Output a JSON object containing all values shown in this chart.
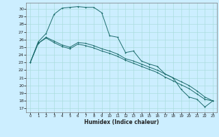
{
  "xlabel": "Humidex (Indice chaleur)",
  "bg_color": "#cceeff",
  "line_color": "#1a6b6b",
  "grid_color": "#aadddd",
  "xlim": [
    -0.5,
    23.5
  ],
  "ylim": [
    16.5,
    30.8
  ],
  "yticks": [
    17,
    18,
    19,
    20,
    21,
    22,
    23,
    24,
    25,
    26,
    27,
    28,
    29,
    30
  ],
  "xticks": [
    0,
    1,
    2,
    3,
    4,
    5,
    6,
    7,
    8,
    9,
    10,
    11,
    12,
    13,
    14,
    15,
    16,
    17,
    18,
    19,
    20,
    21,
    22,
    23
  ],
  "line1_x": [
    0,
    1,
    2,
    3,
    4,
    5,
    6,
    7,
    8,
    9,
    10,
    11,
    12,
    13,
    14,
    15,
    16,
    17,
    18,
    19,
    20,
    21,
    22,
    23
  ],
  "line1_y": [
    23,
    25.7,
    26.8,
    29.3,
    30.1,
    30.2,
    30.3,
    30.2,
    30.2,
    29.5,
    26.5,
    26.3,
    24.3,
    24.5,
    23.2,
    22.8,
    22.5,
    21.5,
    21.0,
    19.5,
    18.5,
    18.2,
    17.2,
    18.0
  ],
  "line2_x": [
    0,
    1,
    2,
    3,
    4,
    5,
    6,
    7,
    8,
    9,
    10,
    11,
    12,
    13,
    14,
    15,
    16,
    17,
    18,
    19,
    20,
    21,
    22,
    23
  ],
  "line2_y": [
    23,
    25.5,
    26.3,
    25.8,
    25.3,
    25.0,
    25.6,
    25.5,
    25.2,
    24.8,
    24.5,
    24.1,
    23.5,
    23.2,
    22.8,
    22.4,
    22.0,
    21.5,
    21.0,
    20.5,
    20.0,
    19.3,
    18.5,
    18.0
  ],
  "line3_x": [
    0,
    1,
    2,
    3,
    4,
    5,
    6,
    7,
    8,
    9,
    10,
    11,
    12,
    13,
    14,
    15,
    16,
    17,
    18,
    19,
    20,
    21,
    22,
    23
  ],
  "line3_y": [
    23,
    25.5,
    26.2,
    25.6,
    25.1,
    24.8,
    25.4,
    25.2,
    24.9,
    24.5,
    24.2,
    23.8,
    23.3,
    22.9,
    22.5,
    22.1,
    21.7,
    21.1,
    20.6,
    20.1,
    19.6,
    18.9,
    18.2,
    18.0
  ]
}
